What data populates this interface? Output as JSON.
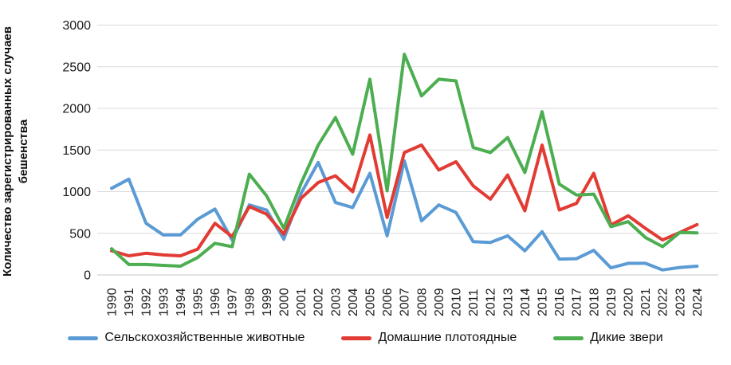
{
  "chart_data": {
    "type": "line",
    "title": "",
    "xlabel": "",
    "ylabel_line1": "Количество зарегистрированных случаев",
    "ylabel_line2": "бешенства",
    "ylim": [
      0,
      3000
    ],
    "yticks": [
      0,
      500,
      1000,
      1500,
      2000,
      2500,
      3000
    ],
    "grid": "horizontal",
    "legend_position": "bottom",
    "categories": [
      "1990",
      "1991",
      "1992",
      "1993",
      "1994",
      "1995",
      "1996",
      "1997",
      "1998",
      "1999",
      "2000",
      "2001",
      "2002",
      "2003",
      "2004",
      "2005",
      "2006",
      "2007",
      "2008",
      "2009",
      "2010",
      "2011",
      "2012",
      "2013",
      "2014",
      "2015",
      "2016",
      "2017",
      "2018",
      "2019",
      "2020",
      "2021",
      "2022",
      "2023",
      "2024"
    ],
    "series": [
      {
        "name": "Сельскохозяйственные животные",
        "color": "#5B9BD5",
        "values": [
          1040,
          1150,
          620,
          480,
          480,
          670,
          790,
          420,
          840,
          780,
          430,
          980,
          1350,
          870,
          810,
          1220,
          470,
          1370,
          650,
          840,
          750,
          400,
          390,
          470,
          290,
          520,
          190,
          195,
          295,
          85,
          140,
          140,
          60,
          90,
          105
        ]
      },
      {
        "name": "Домашние плотоядные",
        "color": "#E23B33",
        "values": [
          290,
          230,
          260,
          240,
          230,
          310,
          620,
          460,
          820,
          730,
          490,
          920,
          1110,
          1190,
          1000,
          1680,
          690,
          1470,
          1560,
          1260,
          1360,
          1070,
          910,
          1200,
          770,
          1560,
          780,
          860,
          1220,
          600,
          710,
          560,
          420,
          510,
          605
        ]
      },
      {
        "name": "Дикие звери",
        "color": "#4CAE50",
        "values": [
          315,
          125,
          125,
          115,
          105,
          210,
          380,
          340,
          1210,
          950,
          560,
          1100,
          1560,
          1890,
          1450,
          2350,
          1010,
          2650,
          2150,
          2350,
          2330,
          1530,
          1470,
          1650,
          1230,
          1960,
          1090,
          960,
          970,
          580,
          640,
          450,
          340,
          510,
          505
        ]
      }
    ],
    "colors": {
      "gridline": "#D9D9D9",
      "axis_line": "#C6C6C6",
      "text": "#1A1A1A"
    }
  }
}
